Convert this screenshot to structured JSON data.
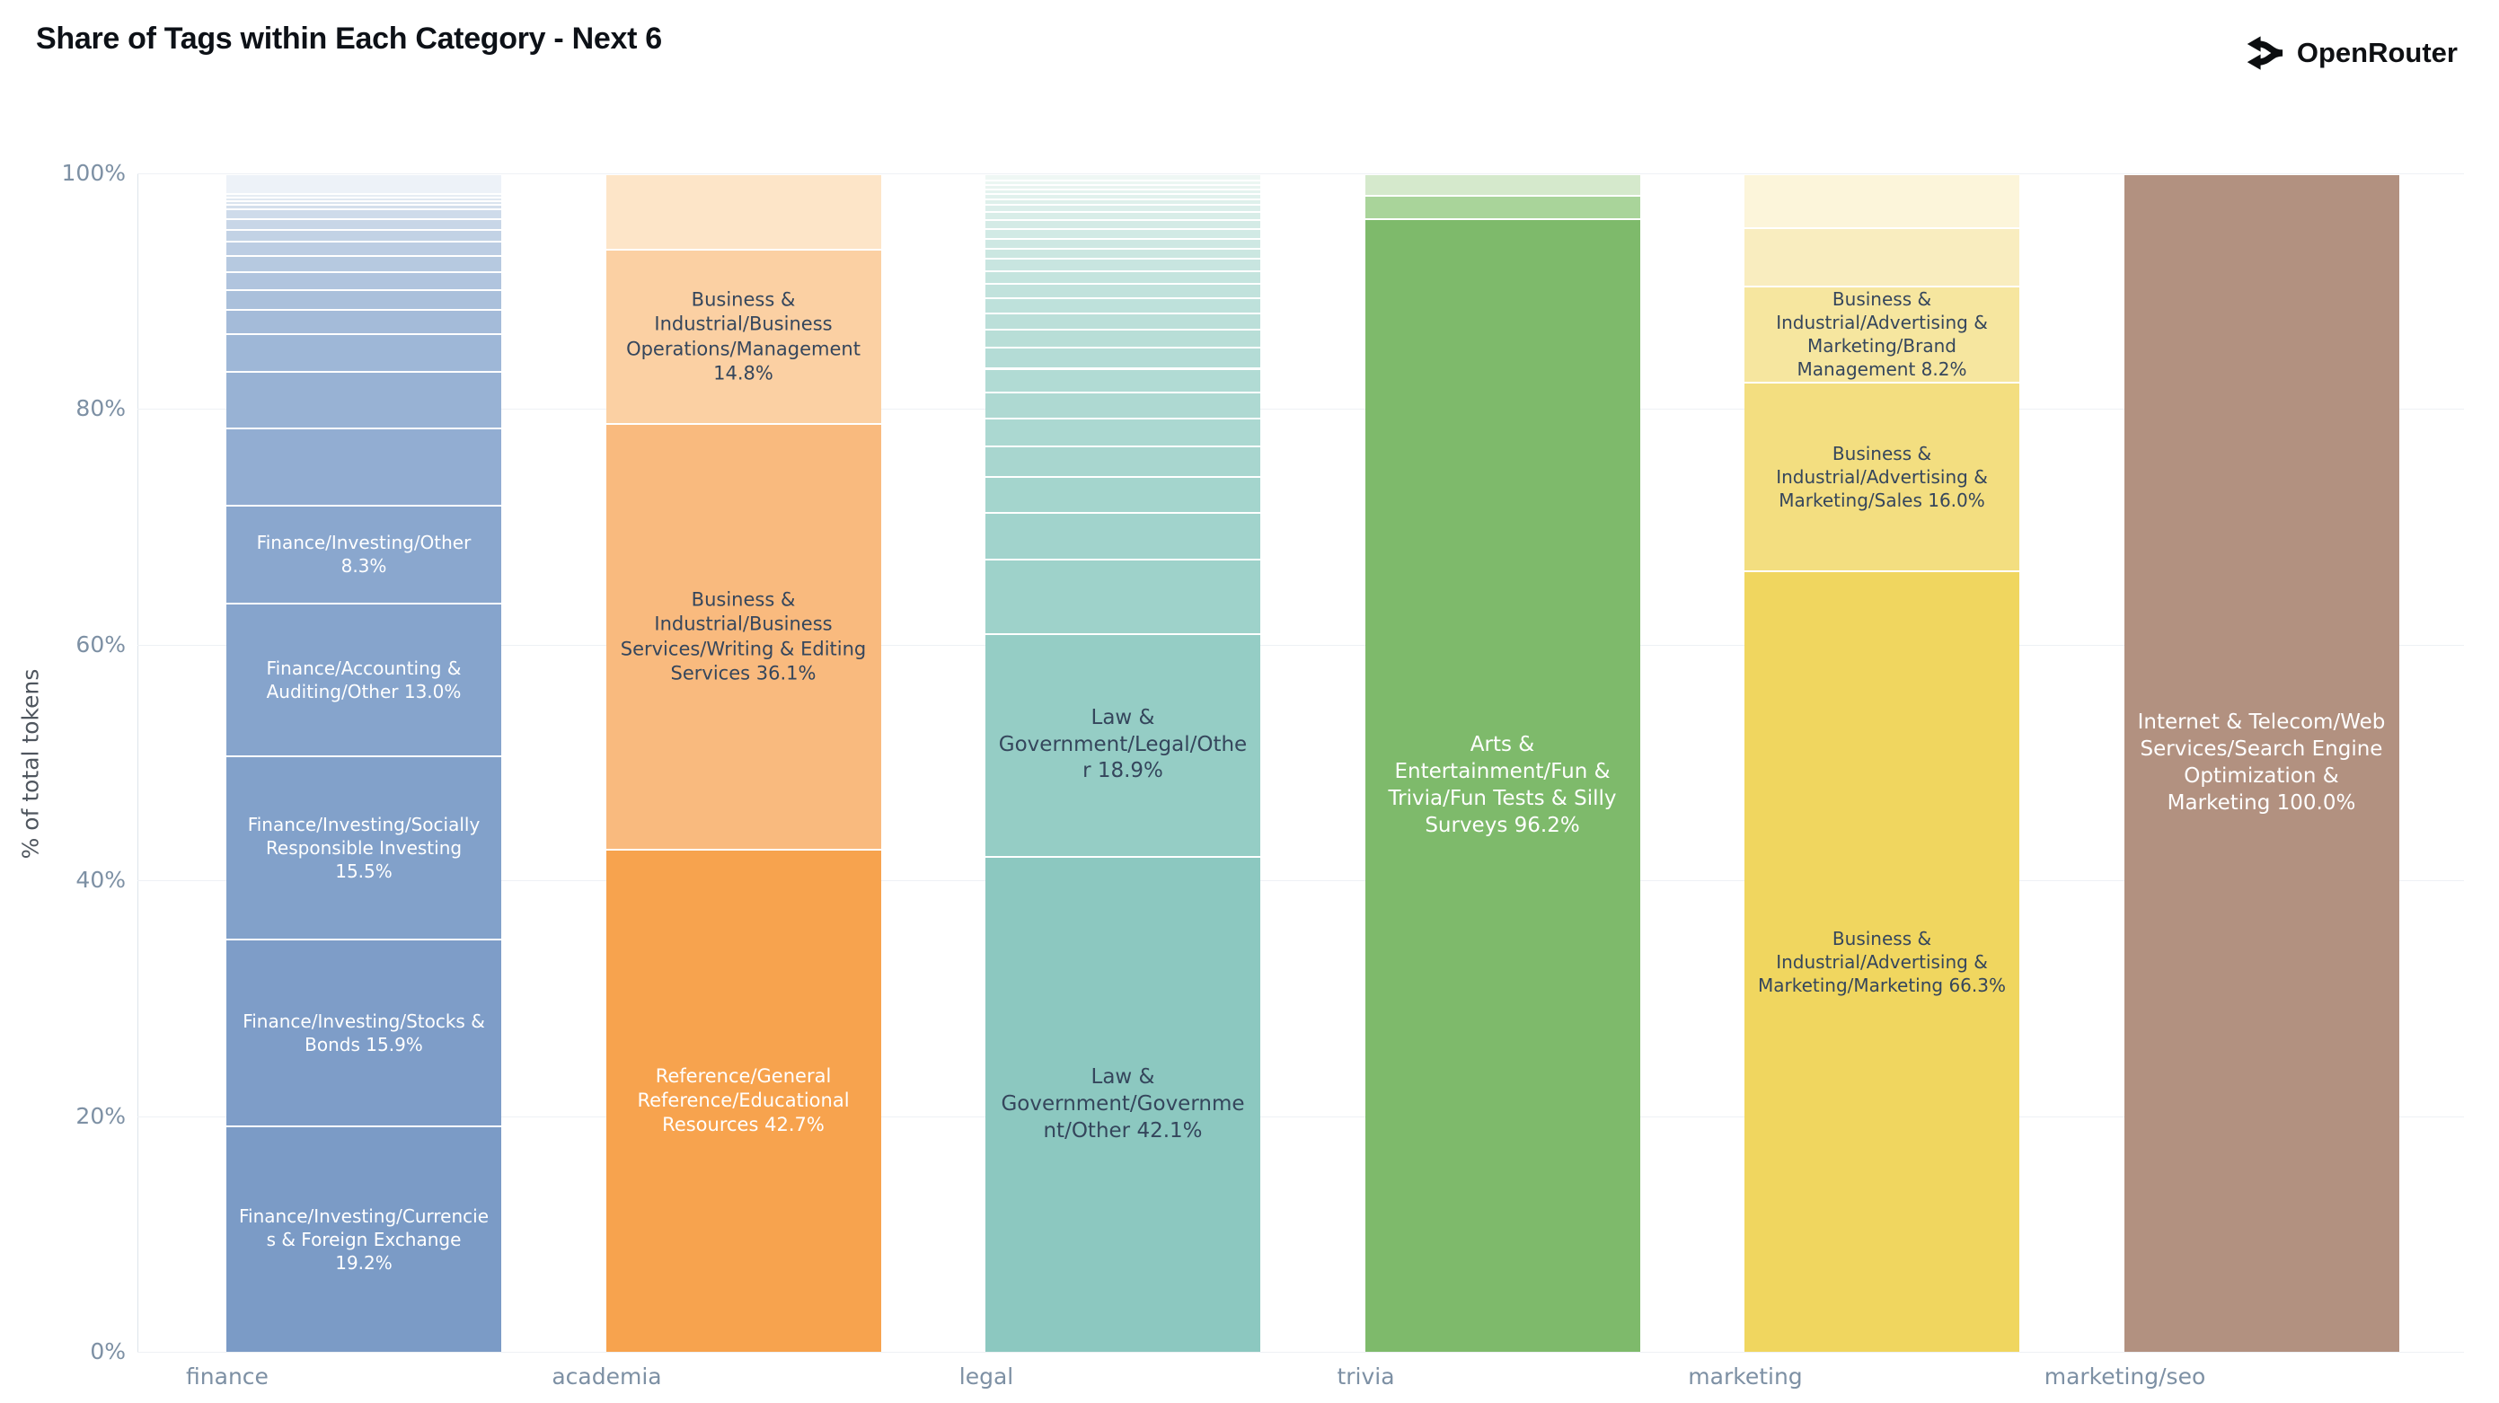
{
  "header": {
    "title": "Share of Tags within Each Category - Next 6",
    "brand": "OpenRouter"
  },
  "chart_data": {
    "type": "bar",
    "stacked": true,
    "orientation": "vertical",
    "title": "Share of Tags within Each Category - Next 6",
    "xlabel": "",
    "ylabel": "% of total tokens",
    "ylim": [
      0,
      100
    ],
    "grid": true,
    "legend": false,
    "yticks": [
      {
        "value": 0,
        "label": "0%"
      },
      {
        "value": 20,
        "label": "20%"
      },
      {
        "value": 40,
        "label": "40%"
      },
      {
        "value": 60,
        "label": "60%"
      },
      {
        "value": 80,
        "label": "80%"
      },
      {
        "value": 100,
        "label": "100%"
      }
    ],
    "categories": [
      "finance",
      "academia",
      "legal",
      "trivia",
      "marketing",
      "marketing/seo"
    ],
    "bars": [
      {
        "category": "finance",
        "label_font_px": 20,
        "segments": [
          {
            "label": "Finance/Investing/Currencies & Foreign Exchange",
            "pct": 19.2,
            "text": "Finance/Investing/Currencies & Foreign Exchange 19.2%",
            "color": "#7b9bc6",
            "text_color": "#ffffff"
          },
          {
            "label": "Finance/Investing/Stocks & Bonds",
            "pct": 15.9,
            "text": "Finance/Investing/Stocks & Bonds 15.9%",
            "color": "#7e9dc8",
            "text_color": "#ffffff"
          },
          {
            "label": "Finance/Investing/Socially Responsible Investing",
            "pct": 15.5,
            "text": "Finance/Investing/Socially Responsible Investing 15.5%",
            "color": "#82a1ca",
            "text_color": "#ffffff"
          },
          {
            "label": "Finance/Accounting & Auditing/Other",
            "pct": 13.0,
            "text": "Finance/Accounting & Auditing/Other 13.0%",
            "color": "#86a4cc",
            "text_color": "#ffffff"
          },
          {
            "label": "Finance/Investing/Other",
            "pct": 8.3,
            "text": "Finance/Investing/Other 8.3%",
            "color": "#8aa7ce",
            "text_color": "#ffffff"
          },
          {
            "label": "",
            "pct": 6.5,
            "color": "#92add2"
          },
          {
            "label": "",
            "pct": 4.8,
            "color": "#98b2d4"
          },
          {
            "label": "",
            "pct": 3.2,
            "color": "#9eb7d7"
          },
          {
            "label": "",
            "pct": 2.1,
            "color": "#a4bbd9"
          },
          {
            "label": "",
            "pct": 1.7,
            "color": "#aac0db"
          },
          {
            "label": "",
            "pct": 1.5,
            "color": "#b0c4de"
          },
          {
            "label": "",
            "pct": 1.4,
            "color": "#b6c9e0"
          },
          {
            "label": "",
            "pct": 1.2,
            "color": "#bccde3"
          },
          {
            "label": "",
            "pct": 1.0,
            "color": "#c2d2e5"
          },
          {
            "label": "",
            "pct": 0.9,
            "color": "#c8d6e7"
          },
          {
            "label": "",
            "pct": 0.8,
            "color": "#cedbea"
          },
          {
            "label": "",
            "pct": 0.4,
            "color": "#d4dfec"
          },
          {
            "label": "",
            "pct": 0.3,
            "color": "#dae4ef"
          },
          {
            "label": "",
            "pct": 0.3,
            "color": "#e0e8f1"
          },
          {
            "label": "",
            "pct": 0.3,
            "color": "#e6edf4"
          },
          {
            "label": "",
            "pct": 1.7,
            "color": "#edf2f8"
          }
        ]
      },
      {
        "category": "academia",
        "label_font_px": 21,
        "segments": [
          {
            "label": "Reference/General Reference/Educational Resources",
            "pct": 42.7,
            "text": "Reference/General Reference/Educational Resources 42.7%",
            "color": "#f7a34e",
            "text_color": "#ffffff"
          },
          {
            "label": "Business & Industrial/Business Services/Writing & Editing Services",
            "pct": 36.1,
            "text": "Business & Industrial/Business Services/Writing & Editing Services 36.1%",
            "color": "#f9ba7e",
            "text_color": "#35465c"
          },
          {
            "label": "Business & Industrial/Business Operations/Management",
            "pct": 14.8,
            "text": "Business & Industrial/Business Operations/Management 14.8%",
            "color": "#fbd0a3",
            "text_color": "#35465c"
          },
          {
            "label": "",
            "pct": 6.4,
            "color": "#fde5c8"
          }
        ]
      },
      {
        "category": "legal",
        "label_font_px": 23,
        "segments": [
          {
            "label": "Law & Government/Government/Other",
            "pct": 42.1,
            "text": "Law & Government/Government/Other 42.1%",
            "color": "#8cc8c0",
            "text_color": "#35465c"
          },
          {
            "label": "Law & Government/Legal/Other",
            "pct": 18.9,
            "text": "Law & Government/Legal/Other 18.9%",
            "color": "#95cdc5",
            "text_color": "#35465c"
          },
          {
            "label": "",
            "pct": 6.3,
            "color": "#9ed2ca"
          },
          {
            "label": "",
            "pct": 4.0,
            "color": "#a1d3cc"
          },
          {
            "label": "",
            "pct": 3.0,
            "color": "#a4d5cd"
          },
          {
            "label": "",
            "pct": 2.6,
            "color": "#a8d6cf"
          },
          {
            "label": "",
            "pct": 2.4,
            "color": "#abd8d1"
          },
          {
            "label": "",
            "pct": 2.2,
            "color": "#aed9d2"
          },
          {
            "label": "",
            "pct": 2.0,
            "color": "#b1dbd4"
          },
          {
            "label": "",
            "pct": 1.8,
            "color": "#b4dcd6"
          },
          {
            "label": "",
            "pct": 1.5,
            "color": "#b8ded7"
          },
          {
            "label": "",
            "pct": 1.4,
            "color": "#bbdfd9"
          },
          {
            "label": "",
            "pct": 1.3,
            "color": "#bee1db"
          },
          {
            "label": "",
            "pct": 1.2,
            "color": "#c1e2dc"
          },
          {
            "label": "",
            "pct": 1.1,
            "color": "#c4e4de"
          },
          {
            "label": "",
            "pct": 1.0,
            "color": "#c8e5e0"
          },
          {
            "label": "",
            "pct": 0.9,
            "color": "#cbe7e1"
          },
          {
            "label": "",
            "pct": 0.85,
            "color": "#cee8e3"
          },
          {
            "label": "",
            "pct": 0.8,
            "color": "#d1eae5"
          },
          {
            "label": "",
            "pct": 0.75,
            "color": "#d4ebe6"
          },
          {
            "label": "",
            "pct": 0.7,
            "color": "#d8ede8"
          },
          {
            "label": "",
            "pct": 0.6,
            "color": "#dbeeea"
          },
          {
            "label": "",
            "pct": 0.5,
            "color": "#def0eb"
          },
          {
            "label": "",
            "pct": 0.4,
            "color": "#e1f1ed"
          },
          {
            "label": "",
            "pct": 0.4,
            "color": "#e4f3ef"
          },
          {
            "label": "",
            "pct": 0.4,
            "color": "#e8f4f0"
          },
          {
            "label": "",
            "pct": 0.4,
            "color": "#ebf6f2"
          },
          {
            "label": "",
            "pct": 0.5,
            "color": "#eff7f4"
          }
        ]
      },
      {
        "category": "trivia",
        "label_font_px": 23,
        "segments": [
          {
            "label": "Arts & Entertainment/Fun & Trivia/Fun Tests & Silly Surveys",
            "pct": 96.2,
            "text": "Arts & Entertainment/Fun & Trivia/Fun Tests & Silly Surveys 96.2%",
            "color": "#7eba6b",
            "text_color": "#ffffff"
          },
          {
            "label": "",
            "pct": 2.0,
            "color": "#a9d49a"
          },
          {
            "label": "",
            "pct": 1.8,
            "color": "#d5e9cc"
          }
        ]
      },
      {
        "category": "marketing",
        "label_font_px": 20,
        "segments": [
          {
            "label": "Business & Industrial/Advertising & Marketing/Marketing",
            "pct": 66.3,
            "text": "Business & Industrial/Advertising & Marketing/Marketing 66.3%",
            "color": "#f0d65f",
            "text_color": "#35465c"
          },
          {
            "label": "Business & Industrial/Advertising & Marketing/Sales",
            "pct": 16.0,
            "text": "Business & Industrial/Advertising & Marketing/Sales 16.0%",
            "color": "#f3de80",
            "text_color": "#35465c"
          },
          {
            "label": "Business & Industrial/Advertising & Marketing/Brand Management",
            "pct": 8.2,
            "text": "Business & Industrial/Advertising & Marketing/Brand Management 8.2%",
            "color": "#f6e69f",
            "text_color": "#35465c"
          },
          {
            "label": "",
            "pct": 4.9,
            "color": "#f9edbf"
          },
          {
            "label": "",
            "pct": 4.6,
            "color": "#fcf5da"
          }
        ]
      },
      {
        "category": "marketing/seo",
        "label_font_px": 23,
        "segments": [
          {
            "label": "Internet & Telecom/Web Services/Search Engine Optimization & Marketing",
            "pct": 100.0,
            "text": "Internet & Telecom/Web Services/Search Engine Optimization & Marketing 100.0%",
            "color": "#b29180",
            "text_color": "#ffffff"
          }
        ]
      }
    ],
    "colors": {
      "finance": "#7b9bc6",
      "academia": "#f7a34e",
      "legal": "#8cc8c0",
      "trivia": "#7eba6b",
      "marketing": "#f0d65f",
      "marketing_seo": "#b29180",
      "tick_text": "#7d90a4",
      "axis_title_text": "#4f565e",
      "gridline": "#eef1f5"
    }
  }
}
